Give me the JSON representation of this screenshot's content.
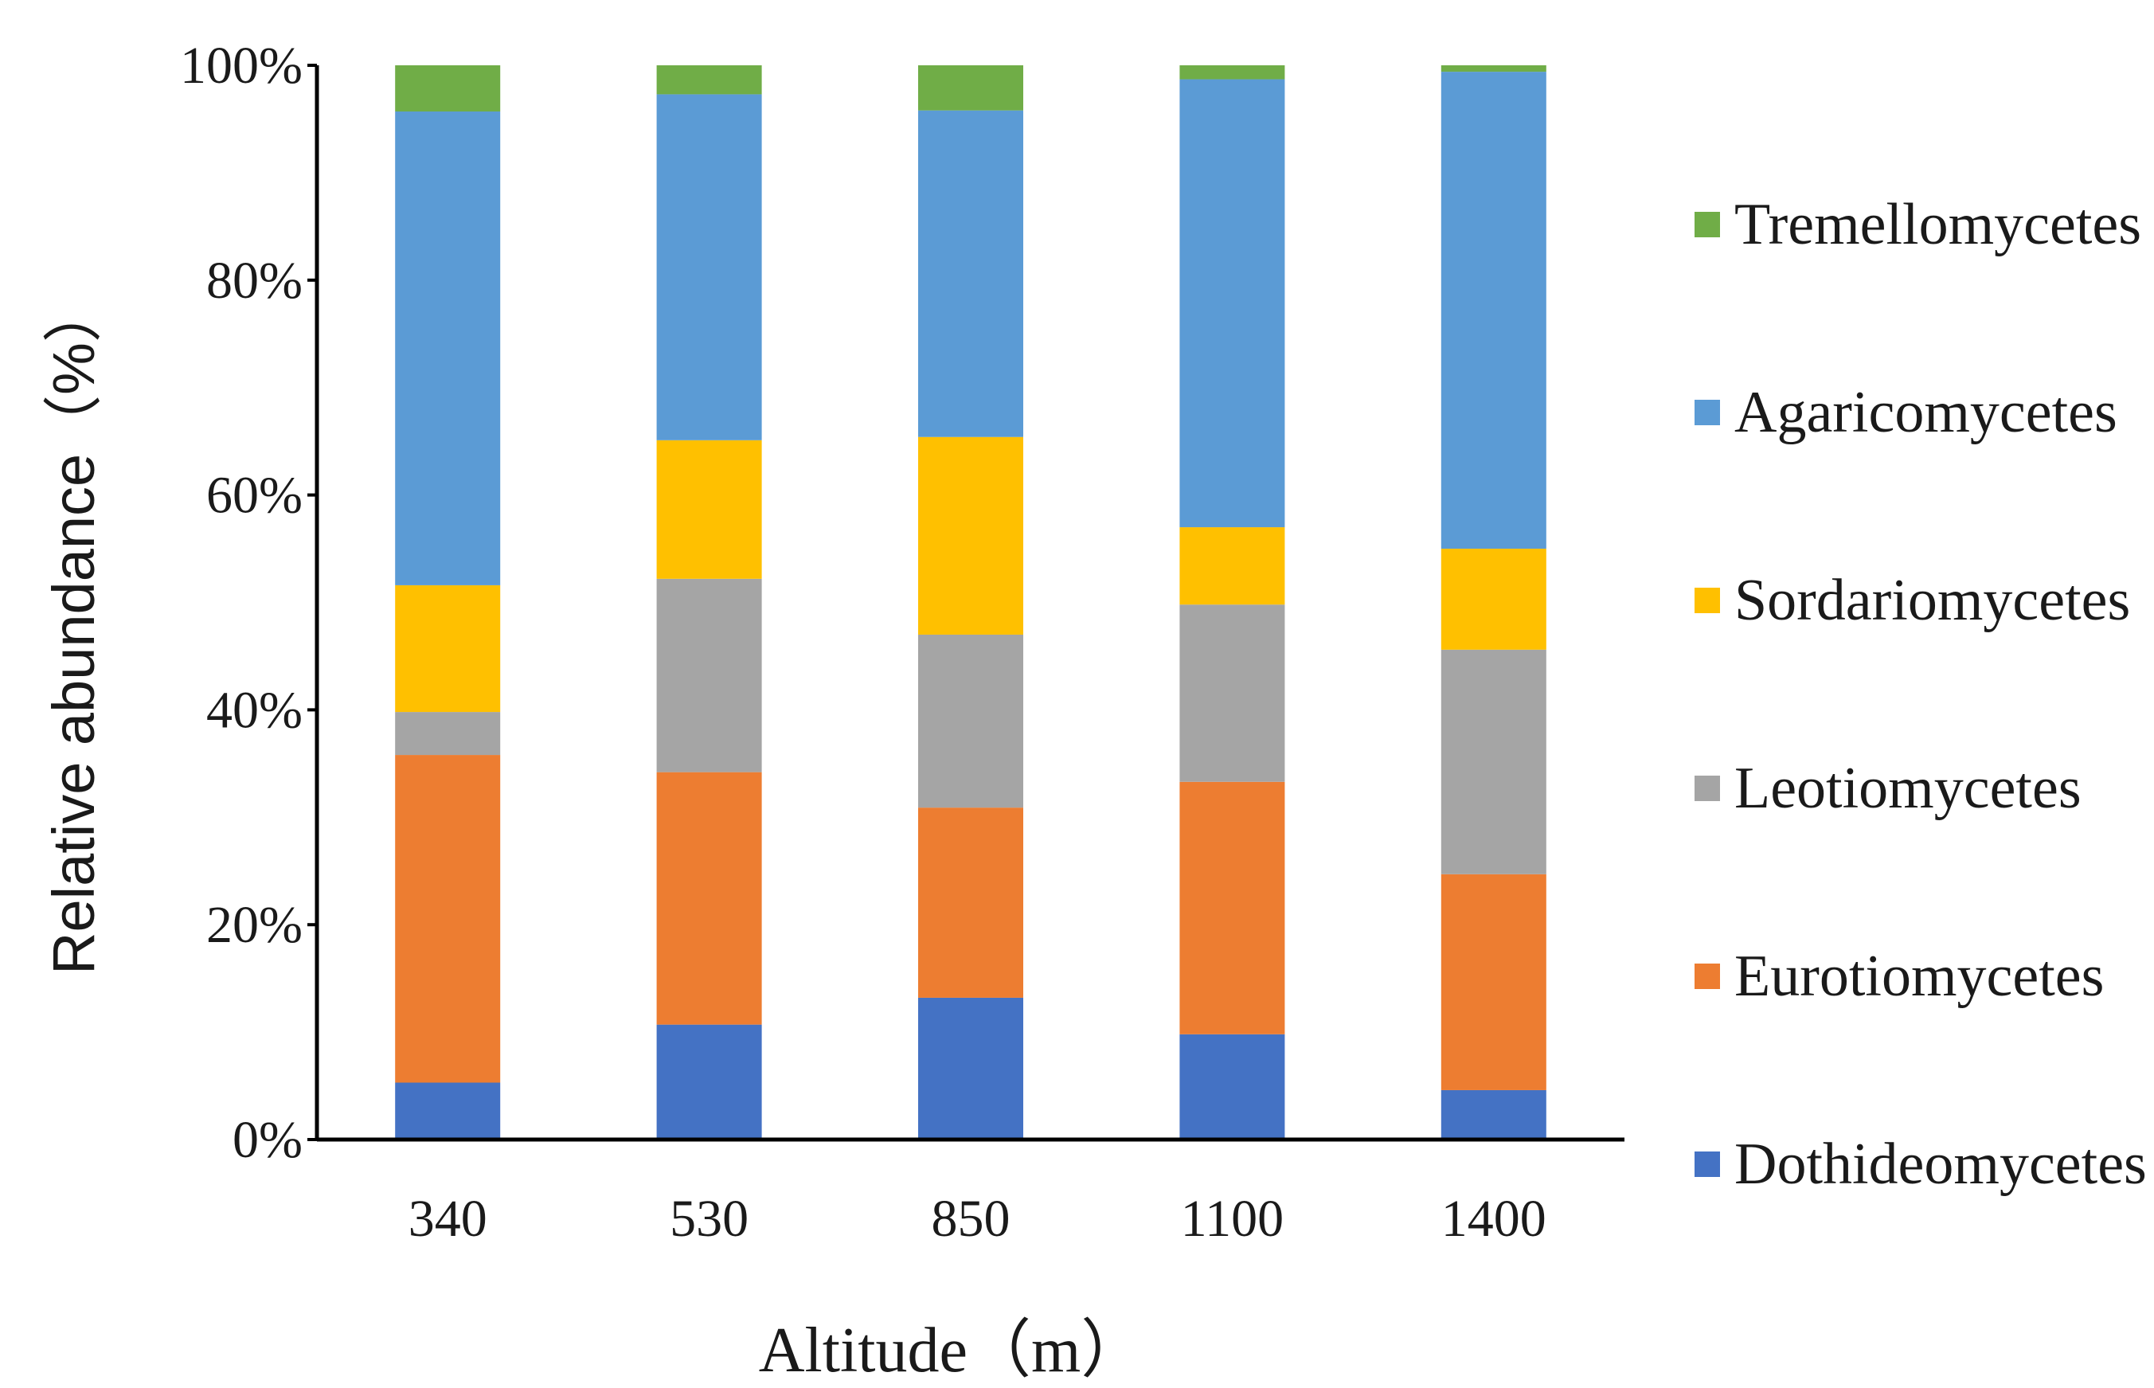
{
  "chart_data": {
    "type": "bar",
    "stacked": true,
    "categories": [
      "340",
      "530",
      "850",
      "1100",
      "1400"
    ],
    "series": [
      {
        "name": "Dothideomycetes",
        "color": "#4472C4",
        "values": [
          5.3,
          10.7,
          13.2,
          9.8,
          4.6
        ]
      },
      {
        "name": "Eurotiomycetes",
        "color": "#ED7D31",
        "values": [
          30.5,
          23.5,
          17.7,
          23.5,
          20.1
        ]
      },
      {
        "name": "Leotiomycetes",
        "color": "#A5A5A5",
        "values": [
          4.0,
          18.0,
          16.1,
          16.5,
          20.9
        ]
      },
      {
        "name": "Sordariomycetes",
        "color": "#FFC000",
        "values": [
          11.8,
          12.9,
          18.4,
          7.2,
          9.4
        ]
      },
      {
        "name": "Agaricomycetes",
        "color": "#5B9BD5",
        "values": [
          44.1,
          32.2,
          30.4,
          41.7,
          44.4
        ]
      },
      {
        "name": "Tremellomycetes",
        "color": "#70AD47",
        "values": [
          4.3,
          2.7,
          4.2,
          1.3,
          0.6
        ]
      }
    ],
    "ylim": [
      0,
      100
    ],
    "yticks": [
      "0%",
      "20%",
      "40%",
      "60%",
      "80%",
      "100%"
    ],
    "xlabel": "Altitude（m）",
    "ylabel": "Relative abundance（%）",
    "legend": {
      "position": "right",
      "order": [
        "Tremellomycetes",
        "Agaricomycetes",
        "Sordariomycetes",
        "Leotiomycetes",
        "Eurotiomycetes",
        "Dothideomycetes"
      ]
    },
    "grid": false
  }
}
